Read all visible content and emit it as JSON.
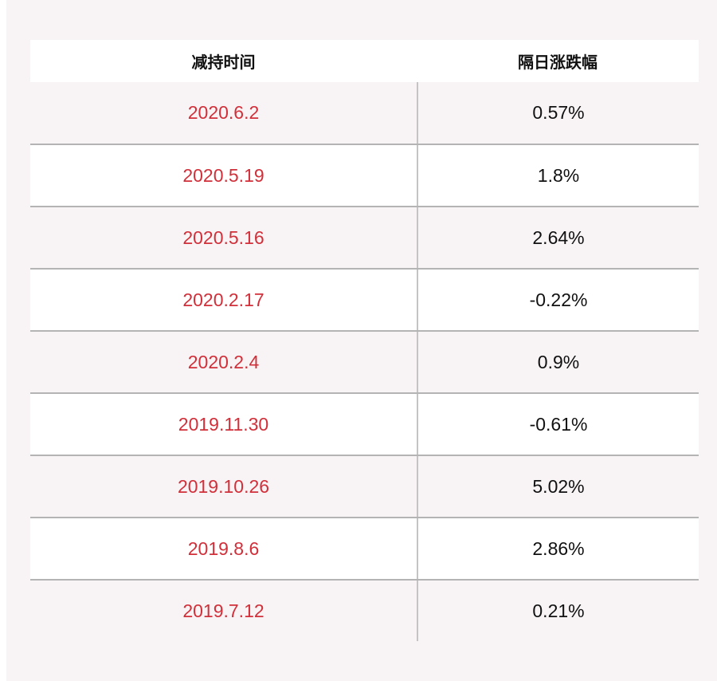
{
  "table": {
    "headers": [
      "减持时间",
      "隔日涨跌幅"
    ],
    "rows": [
      {
        "date": "2020.6.2",
        "change": "0.57%"
      },
      {
        "date": "2020.5.19",
        "change": "1.8%"
      },
      {
        "date": "2020.5.16",
        "change": "2.64%"
      },
      {
        "date": "2020.2.17",
        "change": "-0.22%"
      },
      {
        "date": "2020.2.4",
        "change": "0.9%"
      },
      {
        "date": "2019.11.30",
        "change": "-0.61%"
      },
      {
        "date": "2019.10.26",
        "change": "5.02%"
      },
      {
        "date": "2019.8.6",
        "change": "2.86%"
      },
      {
        "date": "2019.7.12",
        "change": "0.21%"
      }
    ]
  },
  "colors": {
    "date_text": "#d1303a",
    "background": "#f8f4f5",
    "divider": "#b4b4b4"
  }
}
